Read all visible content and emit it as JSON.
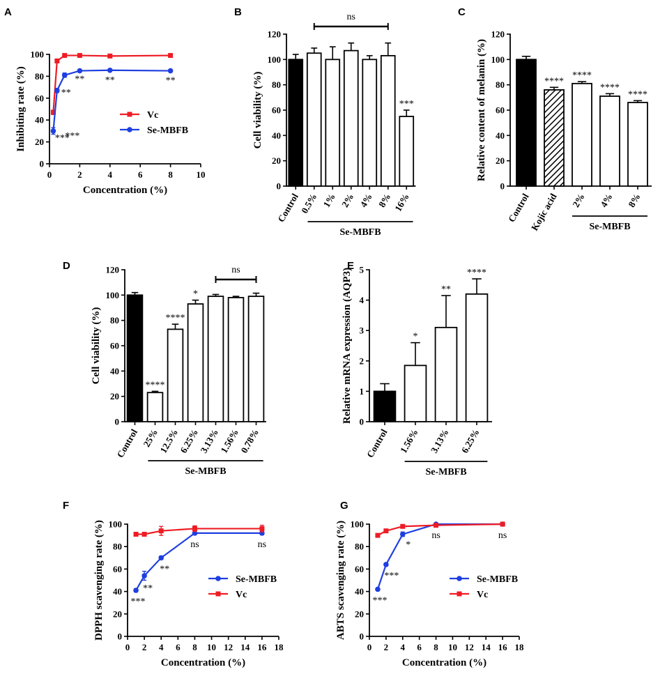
{
  "colors": {
    "red": "#ee1c24",
    "blue": "#1f3fe0",
    "black": "#000000",
    "white": "#ffffff"
  },
  "chart_data": [
    {
      "panel": "A",
      "type": "line",
      "xlabel": "Concentration (%)",
      "ylabel": "Inhibiting rate (%)",
      "xlim": [
        0,
        10
      ],
      "ylim": [
        0,
        100
      ],
      "xticks": [
        0,
        2,
        4,
        6,
        8,
        10
      ],
      "yticks": [
        0,
        20,
        40,
        60,
        80,
        100
      ],
      "legend": "middle-right",
      "series": [
        {
          "name": "Vc",
          "color": "red",
          "marker": "square",
          "x": [
            0.25,
            0.5,
            1,
            2,
            4,
            8
          ],
          "y": [
            47,
            94,
            99,
            99,
            98.5,
            99
          ],
          "err": [
            2,
            1.5,
            1,
            0.5,
            0.5,
            0.5
          ]
        },
        {
          "name": "Se-MBFB",
          "color": "blue",
          "marker": "circle",
          "x": [
            0.25,
            0.5,
            1,
            2,
            4,
            8
          ],
          "y": [
            30,
            67,
            81,
            85,
            85.5,
            85
          ],
          "err": [
            3,
            2,
            2,
            1,
            1,
            1
          ],
          "sig": [
            "***",
            "***",
            "**",
            "**",
            "**",
            "**"
          ],
          "sig_pos": [
            "below",
            "below",
            "below",
            "below",
            "below",
            "below"
          ]
        }
      ]
    },
    {
      "panel": "B",
      "type": "bar",
      "ylabel": "Cell viability (%)",
      "ylim": [
        0,
        120
      ],
      "yticks": [
        0,
        20,
        40,
        60,
        80,
        100,
        120
      ],
      "categories": [
        "Control",
        "0.5%",
        "1%",
        "2%",
        "4%",
        "8%",
        "16%"
      ],
      "values": [
        100,
        105,
        100,
        107,
        100,
        103,
        55
      ],
      "errors": [
        4,
        4,
        10,
        6,
        3,
        10,
        5
      ],
      "fills": [
        "solid",
        "open",
        "open",
        "open",
        "open",
        "open",
        "open"
      ],
      "sig": [
        "",
        "",
        "",
        "",
        "",
        "",
        "***"
      ],
      "bracket": {
        "from": 1,
        "to": 5,
        "label": "ns"
      },
      "group": {
        "from": 1,
        "to": 6,
        "label": "Se-MBFB"
      }
    },
    {
      "panel": "C",
      "type": "bar",
      "ylabel": "Relative content of melanin (%)",
      "ylim": [
        0,
        120
      ],
      "yticks": [
        0,
        20,
        40,
        60,
        80,
        100,
        120
      ],
      "categories": [
        "Control",
        "Kojic acid",
        "2%",
        "4%",
        "8%"
      ],
      "values": [
        100,
        76,
        81,
        71,
        66
      ],
      "errors": [
        2.5,
        2,
        1.5,
        2,
        1.5
      ],
      "fills": [
        "solid",
        "hatch",
        "open",
        "open",
        "open"
      ],
      "sig": [
        "",
        "****",
        "****",
        "****",
        "****"
      ],
      "group": {
        "from": 2,
        "to": 4,
        "label": "Se-MBFB"
      }
    },
    {
      "panel": "D",
      "type": "bar",
      "ylabel": "Cell viability (%)",
      "ylim": [
        0,
        120
      ],
      "yticks": [
        0,
        20,
        40,
        60,
        80,
        100,
        120
      ],
      "categories": [
        "Control",
        "25%",
        "12.5%",
        "6.25%",
        "3.13%",
        "1.56%",
        "0.78%"
      ],
      "values": [
        100,
        23,
        73,
        93,
        99,
        98,
        99
      ],
      "errors": [
        2,
        1,
        4,
        3,
        1.5,
        1,
        2.5
      ],
      "fills": [
        "solid",
        "open",
        "open",
        "open",
        "open",
        "open",
        "open"
      ],
      "sig": [
        "",
        "****",
        "****",
        "*",
        "",
        "",
        ""
      ],
      "bracket": {
        "from": 4,
        "to": 6,
        "label": "ns"
      },
      "group": {
        "from": 1,
        "to": 6,
        "label": "Se-MBFB"
      }
    },
    {
      "panel": "E",
      "type": "bar",
      "ylabel": "Relative mRNA expression (AQP3)",
      "ylim": [
        0,
        5
      ],
      "yticks": [
        0,
        1,
        2,
        3,
        4,
        5
      ],
      "categories": [
        "Control",
        "1.56%",
        "3.13%",
        "6.25%"
      ],
      "values": [
        1.0,
        1.85,
        3.1,
        4.2
      ],
      "errors": [
        0.25,
        0.75,
        1.05,
        0.5
      ],
      "fills": [
        "solid",
        "open",
        "open",
        "open"
      ],
      "sig": [
        "",
        "*",
        "**",
        "****"
      ],
      "group": {
        "from": 1,
        "to": 3,
        "label": "Se-MBFB"
      }
    },
    {
      "panel": "F",
      "type": "line",
      "xlabel": "Concentration (%)",
      "ylabel": "DPPH scavenging rate (%)",
      "xlim": [
        0,
        18
      ],
      "ylim": [
        0,
        100
      ],
      "xticks": [
        0,
        2,
        4,
        6,
        8,
        10,
        12,
        14,
        16,
        18
      ],
      "yticks": [
        0,
        20,
        40,
        60,
        80,
        100
      ],
      "legend": "middle-right",
      "series": [
        {
          "name": "Se-MBFB",
          "color": "blue",
          "marker": "circle",
          "x": [
            1,
            2,
            4,
            8,
            16
          ],
          "y": [
            41,
            54,
            70,
            92,
            92
          ],
          "err": [
            1.5,
            4,
            1.5,
            1.5,
            1.5
          ],
          "sig": [
            "***",
            "**",
            "**",
            "ns",
            "ns"
          ],
          "sig_pos": [
            "below",
            "below",
            "below",
            "below",
            "below"
          ]
        },
        {
          "name": "Vc",
          "color": "red",
          "marker": "square",
          "x": [
            1,
            2,
            4,
            8,
            16
          ],
          "y": [
            91,
            91,
            94,
            96,
            96
          ],
          "err": [
            1,
            1,
            4,
            2.5,
            3
          ]
        }
      ]
    },
    {
      "panel": "G",
      "type": "line",
      "xlabel": "Concentration (%)",
      "ylabel": "ABTS scavenging rate (%)",
      "xlim": [
        0,
        18
      ],
      "ylim": [
        0,
        100
      ],
      "xticks": [
        0,
        2,
        4,
        6,
        8,
        10,
        12,
        14,
        16,
        18
      ],
      "yticks": [
        0,
        20,
        40,
        60,
        80,
        100
      ],
      "legend": "middle-right",
      "series": [
        {
          "name": "Se-MBFB",
          "color": "blue",
          "marker": "circle",
          "x": [
            1,
            2,
            4,
            8,
            16
          ],
          "y": [
            42,
            64,
            91,
            100,
            100
          ],
          "err": [
            0.5,
            1,
            2,
            0.5,
            0.5
          ],
          "sig": [
            "***",
            "***",
            "*",
            "ns",
            "ns"
          ],
          "sig_pos": [
            "below",
            "below",
            "below",
            "below",
            "below"
          ]
        },
        {
          "name": "Vc",
          "color": "red",
          "marker": "square",
          "x": [
            1,
            2,
            4,
            8,
            16
          ],
          "y": [
            90,
            94,
            98,
            99,
            100
          ],
          "err": [
            1,
            0.5,
            0.5,
            0.5,
            0.5
          ]
        }
      ]
    }
  ]
}
